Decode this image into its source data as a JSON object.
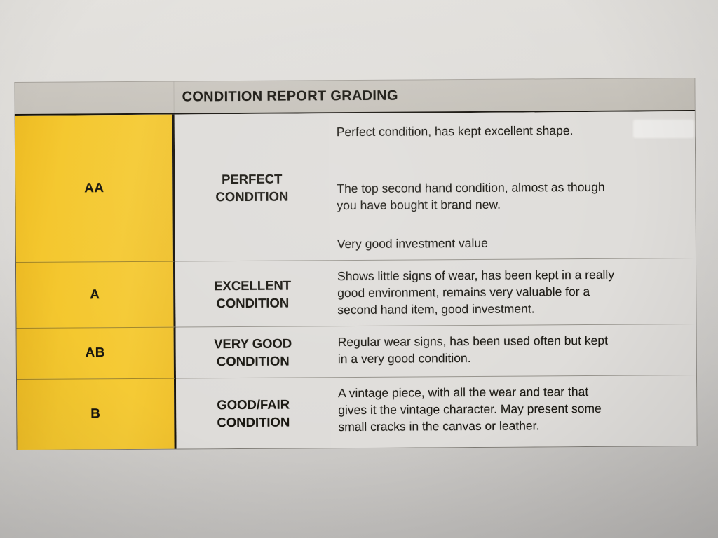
{
  "document": {
    "header": {
      "title": "CONDITION REPORT GRADING"
    },
    "rows": [
      {
        "grade": "AA",
        "label": "PERFECT\nCONDITION",
        "paragraphs": [
          "Perfect condition, has kept excellent shape.",
          "The top second hand condition, almost as though\nyou have bought it brand new.",
          "Very good investment value"
        ]
      },
      {
        "grade": "A",
        "label": "EXCELLENT\nCONDITION",
        "paragraphs": [
          "Shows little signs of wear, has been kept in a really\ngood environment, remains very valuable for a\nsecond hand item, good investment."
        ]
      },
      {
        "grade": "AB",
        "label": "VERY GOOD\nCONDITION",
        "paragraphs": [
          "Regular wear signs, has been used often but kept\nin a very good condition."
        ]
      },
      {
        "grade": "B",
        "label": "GOOD/FAIR\nCONDITION",
        "paragraphs": [
          "A vintage piece, with all the wear and tear that\ngives it the vintage character. May present some\nsmall cracks in the canvas or leather."
        ]
      }
    ],
    "colors": {
      "grade_column_yellow": "#f2c52f",
      "header_bar_gray": "#c7c3bb",
      "paper_gray": "#d9d7d4",
      "cell_gray": "#dedcd9",
      "ink_black": "#17150f"
    }
  }
}
